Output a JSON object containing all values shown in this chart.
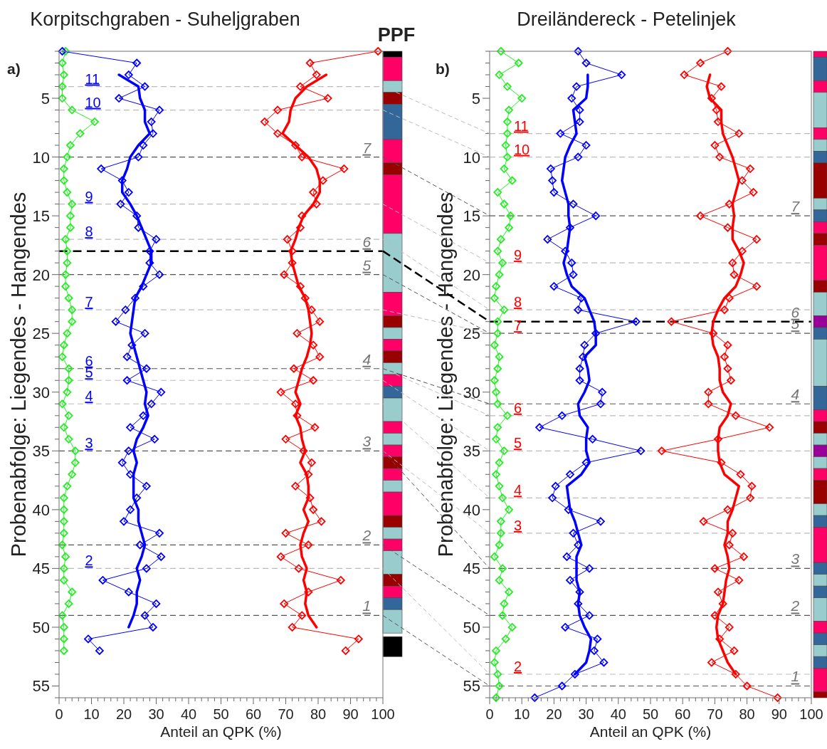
{
  "chart_data": [
    {
      "type": "line",
      "title": "Korpitschgraben - Suheljgraben",
      "xlabel": "Anteil an QPK (%)",
      "ylabel": "Probenabfolge: Liegendes - Hangendes",
      "xlim": [
        0,
        100
      ],
      "ylim": [
        56,
        1
      ],
      "marker": "diamond",
      "line_style": "solid",
      "grid": false,
      "xticks": [
        0,
        {
          "value": 2,
          "label": null
        },
        {
          "value": 4,
          "label": null
        },
        {
          "value": 6,
          "label": null
        },
        {
          "value": 8,
          "label": null
        },
        10,
        {
          "value": 12,
          "label": null
        },
        {
          "value": 14,
          "label": null
        },
        {
          "value": 16,
          "label": null
        },
        {
          "value": 18,
          "label": null
        },
        20,
        {
          "value": 22,
          "label": null
        },
        {
          "value": 24,
          "label": null
        },
        {
          "value": 26,
          "label": null
        },
        {
          "value": 28,
          "label": null
        },
        30,
        {
          "value": 32,
          "label": null
        },
        {
          "value": 34,
          "label": null
        },
        {
          "value": 36,
          "label": null
        },
        {
          "value": 38,
          "label": null
        },
        40,
        {
          "value": 42,
          "label": null
        },
        {
          "value": 44,
          "label": null
        },
        {
          "value": 46,
          "label": null
        },
        {
          "value": 48,
          "label": null
        },
        50,
        {
          "value": 52,
          "label": null
        },
        {
          "value": 54,
          "label": null
        },
        {
          "value": 56,
          "label": null
        },
        {
          "value": 58,
          "label": null
        },
        60,
        {
          "value": 62,
          "label": null
        },
        {
          "value": 64,
          "label": null
        },
        {
          "value": 66,
          "label": null
        },
        {
          "value": 68,
          "label": null
        },
        70,
        {
          "value": 72,
          "label": null
        },
        {
          "value": 74,
          "label": null
        },
        {
          "value": 76,
          "label": null
        },
        {
          "value": 78,
          "label": null
        },
        80,
        {
          "value": 82,
          "label": null
        },
        {
          "value": 84,
          "label": null
        },
        {
          "value": 86,
          "label": null
        },
        {
          "value": 88,
          "label": null
        },
        90,
        {
          "value": 92,
          "label": null
        },
        {
          "value": 94,
          "label": null
        },
        {
          "value": 96,
          "label": null
        },
        {
          "value": 98,
          "label": null
        },
        100
      ],
      "yticks": [
        {
          "value": 1,
          "label": null
        },
        {
          "value": 2,
          "label": null
        },
        {
          "value": 3,
          "label": null
        },
        {
          "value": 4,
          "label": null
        },
        5,
        {
          "value": 6,
          "label": null
        },
        {
          "value": 7,
          "label": null
        },
        {
          "value": 8,
          "label": null
        },
        {
          "value": 9,
          "label": null
        },
        10,
        {
          "value": 11,
          "label": null
        },
        {
          "value": 12,
          "label": null
        },
        {
          "value": 13,
          "label": null
        },
        {
          "value": 14,
          "label": null
        },
        15,
        {
          "value": 16,
          "label": null
        },
        {
          "value": 17,
          "label": null
        },
        {
          "value": 18,
          "label": null
        },
        {
          "value": 19,
          "label": null
        },
        20,
        {
          "value": 21,
          "label": null
        },
        {
          "value": 22,
          "label": null
        },
        {
          "value": 23,
          "label": null
        },
        {
          "value": 24,
          "label": null
        },
        25,
        {
          "value": 26,
          "label": null
        },
        {
          "value": 27,
          "label": null
        },
        {
          "value": 28,
          "label": null
        },
        {
          "value": 29,
          "label": null
        },
        30,
        {
          "value": 31,
          "label": null
        },
        {
          "value": 32,
          "label": null
        },
        {
          "value": 33,
          "label": null
        },
        {
          "value": 34,
          "label": null
        },
        35,
        {
          "value": 36,
          "label": null
        },
        {
          "value": 37,
          "label": null
        },
        {
          "value": 38,
          "label": null
        },
        {
          "value": 39,
          "label": null
        },
        40,
        {
          "value": 41,
          "label": null
        },
        {
          "value": 42,
          "label": null
        },
        {
          "value": 43,
          "label": null
        },
        {
          "value": 44,
          "label": null
        },
        45,
        {
          "value": 46,
          "label": null
        },
        {
          "value": 47,
          "label": null
        },
        {
          "value": 48,
          "label": null
        },
        {
          "value": 49,
          "label": null
        },
        50,
        {
          "value": 51,
          "label": null
        },
        {
          "value": 52,
          "label": null
        },
        {
          "value": 53,
          "label": null
        },
        {
          "value": 54,
          "label": null
        },
        55,
        {
          "value": 56,
          "label": null
        }
      ],
      "series": [
        {
          "color": "#22ee22",
          "x": [
            2,
            1,
            1.5,
            1,
            1,
            4,
            11,
            6.5,
            3.5,
            2.5,
            1.5,
            1.5,
            2.5,
            4,
            3.5,
            3.5,
            2,
            2.5,
            2.5,
            2,
            2,
            3,
            4,
            4,
            2.5,
            1.5,
            1,
            3,
            3,
            2.5,
            1,
            3,
            1.5,
            3,
            5,
            5,
            4,
            2.5,
            1.5,
            1.5,
            1.5,
            1.5,
            1,
            2,
            1.5,
            1.5,
            4,
            3,
            1,
            1.5,
            1.5,
            1.5
          ],
          "values": [
            1,
            2,
            3,
            4,
            5,
            6,
            7,
            8,
            9,
            10,
            11,
            12,
            13,
            14,
            15,
            16,
            17,
            18,
            19,
            20,
            21,
            22,
            23,
            24,
            25,
            26,
            27,
            28,
            29,
            30,
            31,
            32,
            33,
            34,
            35,
            36,
            37,
            38,
            39,
            40,
            41,
            42,
            43,
            44,
            45,
            46,
            47,
            48,
            49,
            50,
            51,
            52
          ]
        },
        {
          "color": "#0000ff",
          "x": [
            1,
            24,
            21.5,
            26.5,
            18.5,
            31,
            28.5,
            29,
            26,
            24.5,
            13,
            19.5,
            21.5,
            19,
            24,
            24.5,
            30,
            28,
            28,
            31,
            26,
            23.5,
            20.5,
            17.5,
            26.5,
            22.5,
            21,
            27,
            21,
            31.5,
            28.5,
            26,
            22,
            29.5,
            21.5,
            19.5,
            22,
            27,
            24,
            22,
            20,
            31,
            25,
            31.5,
            27,
            13.5,
            21.5,
            30,
            26.5,
            29,
            9,
            12.5
          ],
          "values": [
            1,
            2,
            3,
            4,
            5,
            6,
            7,
            8,
            9,
            10,
            11,
            12,
            13,
            14,
            15,
            16,
            17,
            18,
            19,
            20,
            21,
            22,
            23,
            24,
            25,
            26,
            27,
            28,
            29,
            30,
            31,
            32,
            33,
            34,
            35,
            36,
            37,
            38,
            39,
            40,
            41,
            42,
            43,
            44,
            45,
            46,
            47,
            48,
            49,
            50,
            51,
            52
          ]
        },
        {
          "color": "#ff0000",
          "x": [
            98.5,
            77.5,
            79.5,
            74.5,
            83,
            67.5,
            63.5,
            67.5,
            73,
            75,
            88,
            81.5,
            78.5,
            79.5,
            75,
            74.5,
            70.5,
            72,
            72,
            69.5,
            74.5,
            76,
            78,
            80.5,
            73.5,
            78.5,
            80.5,
            72.5,
            78.5,
            68.5,
            73,
            73.5,
            79,
            70,
            75.5,
            78,
            77,
            73,
            77.5,
            78.5,
            81,
            70,
            77,
            68.5,
            74,
            87,
            77,
            69.5,
            75,
            72,
            92.5,
            88.5
          ],
          "values": [
            1,
            2,
            3,
            4,
            5,
            6,
            7,
            8,
            9,
            10,
            11,
            12,
            13,
            14,
            15,
            16,
            17,
            18,
            19,
            20,
            21,
            22,
            23,
            24,
            25,
            26,
            27,
            28,
            29,
            30,
            31,
            32,
            33,
            34,
            35,
            36,
            37,
            38,
            39,
            40,
            41,
            42,
            43,
            44,
            45,
            46,
            47,
            48,
            49,
            50,
            51,
            52
          ]
        },
        {
          "color": "#0000ff",
          "marker": "none",
          "x": [
            18.5,
            24.5,
            25,
            26.5,
            26.5,
            28,
            24.5,
            22,
            21,
            19.5,
            19.5,
            22,
            24,
            25.5,
            27,
            28.5,
            28.5,
            27,
            25.5,
            23.5,
            23,
            22.5,
            22,
            23,
            24,
            25,
            26,
            27,
            26.5,
            27.5,
            26,
            24,
            23,
            24,
            23,
            23,
            23,
            24.5,
            24.5,
            25.5,
            26.5,
            25.5,
            24,
            25,
            24,
            24,
            23,
            21.5
          ],
          "values": [
            3,
            4,
            5,
            6,
            7,
            8,
            9,
            10,
            11,
            12,
            13,
            14,
            15,
            16,
            17,
            18,
            19,
            20,
            21,
            22,
            23,
            24,
            25,
            26,
            27,
            28,
            29,
            30,
            31,
            32,
            33,
            34,
            35,
            36,
            37,
            38,
            39,
            40,
            41,
            42,
            43,
            44,
            45,
            46,
            47,
            48,
            49,
            50
          ]
        },
        {
          "color": "#ff0000",
          "marker": "none",
          "x": [
            82.5,
            76.5,
            73,
            71.5,
            71,
            69,
            73,
            77,
            79.5,
            80.5,
            80.5,
            78.5,
            75.5,
            74,
            73,
            71.5,
            72,
            73,
            74,
            76,
            77,
            77.5,
            78,
            77.5,
            76.5,
            75,
            74,
            73,
            74.5,
            73,
            74.5,
            75,
            76,
            74.5,
            76.5,
            77,
            77,
            75.5,
            77,
            75.5,
            74.5,
            75,
            76.5,
            75.5,
            76.5,
            76,
            77,
            79.5
          ],
          "values": [
            3,
            4,
            5,
            6,
            7,
            8,
            9,
            10,
            11,
            12,
            13,
            14,
            15,
            16,
            17,
            18,
            19,
            20,
            21,
            22,
            23,
            24,
            25,
            26,
            27,
            28,
            29,
            30,
            31,
            32,
            33,
            34,
            35,
            36,
            37,
            38,
            39,
            40,
            41,
            42,
            43,
            44,
            45,
            46,
            47,
            48,
            49,
            50
          ]
        }
      ],
      "ref_lines": [
        {
          "axis": "y",
          "value": 10,
          "color": "#555555",
          "line_style": "dashed"
        },
        {
          "axis": "y",
          "value": 18,
          "color": "#000000",
          "line_style": "dashed"
        },
        {
          "axis": "y",
          "value": 20,
          "color": "#555555",
          "line_style": "dashed"
        },
        {
          "axis": "y",
          "value": 28,
          "color": "#555555",
          "line_style": "dashed"
        },
        {
          "axis": "y",
          "value": 35,
          "color": "#555555",
          "line_style": "dashed"
        },
        {
          "axis": "y",
          "value": 43,
          "color": "#555555",
          "line_style": "dashed"
        },
        {
          "axis": "y",
          "value": 49,
          "color": "#555555",
          "line_style": "dashed"
        },
        {
          "axis": "y",
          "value": 4,
          "color": "#bbbbbb",
          "line_style": "dashed"
        },
        {
          "axis": "y",
          "value": 6,
          "color": "#bbbbbb",
          "line_style": "dashed"
        },
        {
          "axis": "y",
          "value": 14,
          "color": "#bbbbbb",
          "line_style": "dashed"
        },
        {
          "axis": "y",
          "value": 17,
          "color": "#bbbbbb",
          "line_style": "dashed"
        },
        {
          "axis": "y",
          "value": 23,
          "color": "#bbbbbb",
          "line_style": "dashed"
        },
        {
          "axis": "y",
          "value": 29,
          "color": "#bbbbbb",
          "line_style": "dashed"
        },
        {
          "axis": "y",
          "value": 31,
          "color": "#bbbbbb",
          "line_style": "dashed"
        },
        {
          "axis": "y",
          "value": 45,
          "color": "#bbbbbb",
          "line_style": "dashed"
        }
      ],
      "annotations": [
        "a)",
        "PPF",
        {
          "text": "7",
          "x": 95,
          "y": 10
        },
        {
          "text": "6",
          "x": 95,
          "y": 18
        },
        {
          "text": "5",
          "x": 95,
          "y": 20
        },
        {
          "text": "4",
          "x": 95,
          "y": 28
        },
        {
          "text": "3",
          "x": 95,
          "y": 35
        },
        {
          "text": "2",
          "x": 95,
          "y": 43
        },
        {
          "text": "1",
          "x": 95,
          "y": 49
        },
        {
          "text": "11",
          "x": 8,
          "y": 4
        },
        {
          "text": "10",
          "x": 8,
          "y": 6
        },
        {
          "text": "9",
          "x": 8,
          "y": 14
        },
        {
          "text": "8",
          "x": 8,
          "y": 17
        },
        {
          "text": "7",
          "x": 8,
          "y": 23
        },
        {
          "text": "6",
          "x": 8,
          "y": 28
        },
        {
          "text": "5",
          "x": 8,
          "y": 29
        },
        {
          "text": "4",
          "x": 8,
          "y": 31
        },
        {
          "text": "3",
          "x": 8,
          "y": 35
        },
        {
          "text": "2",
          "x": 8,
          "y": 45
        }
      ]
    },
    {
      "type": "line",
      "title": "Dreiländereck - Petelinjek",
      "xlabel": "Anteil an QPK (%)",
      "ylabel": "Probenabfolge: Liegendes - Hangendes",
      "xlim": [
        0,
        100
      ],
      "ylim": [
        56,
        1
      ],
      "marker": "diamond",
      "line_style": "solid",
      "grid": false,
      "xticks": [
        0,
        {
          "value": 2,
          "label": null
        },
        {
          "value": 4,
          "label": null
        },
        {
          "value": 6,
          "label": null
        },
        {
          "value": 8,
          "label": null
        },
        10,
        {
          "value": 12,
          "label": null
        },
        {
          "value": 14,
          "label": null
        },
        {
          "value": 16,
          "label": null
        },
        {
          "value": 18,
          "label": null
        },
        20,
        {
          "value": 22,
          "label": null
        },
        {
          "value": 24,
          "label": null
        },
        {
          "value": 26,
          "label": null
        },
        {
          "value": 28,
          "label": null
        },
        30,
        {
          "value": 32,
          "label": null
        },
        {
          "value": 34,
          "label": null
        },
        {
          "value": 36,
          "label": null
        },
        {
          "value": 38,
          "label": null
        },
        40,
        {
          "value": 42,
          "label": null
        },
        {
          "value": 44,
          "label": null
        },
        {
          "value": 46,
          "label": null
        },
        {
          "value": 48,
          "label": null
        },
        50,
        {
          "value": 52,
          "label": null
        },
        {
          "value": 54,
          "label": null
        },
        {
          "value": 56,
          "label": null
        },
        {
          "value": 58,
          "label": null
        },
        60,
        {
          "value": 62,
          "label": null
        },
        {
          "value": 64,
          "label": null
        },
        {
          "value": 66,
          "label": null
        },
        {
          "value": 68,
          "label": null
        },
        70,
        {
          "value": 72,
          "label": null
        },
        {
          "value": 74,
          "label": null
        },
        {
          "value": 76,
          "label": null
        },
        {
          "value": 78,
          "label": null
        },
        80,
        {
          "value": 82,
          "label": null
        },
        {
          "value": 84,
          "label": null
        },
        {
          "value": 86,
          "label": null
        },
        {
          "value": 88,
          "label": null
        },
        90,
        {
          "value": 92,
          "label": null
        },
        {
          "value": 94,
          "label": null
        },
        {
          "value": 96,
          "label": null
        },
        {
          "value": 98,
          "label": null
        },
        100
      ],
      "yticks": [
        {
          "value": 1,
          "label": null
        },
        {
          "value": 2,
          "label": null
        },
        {
          "value": 3,
          "label": null
        },
        {
          "value": 4,
          "label": null
        },
        5,
        {
          "value": 6,
          "label": null
        },
        {
          "value": 7,
          "label": null
        },
        {
          "value": 8,
          "label": null
        },
        {
          "value": 9,
          "label": null
        },
        10,
        {
          "value": 11,
          "label": null
        },
        {
          "value": 12,
          "label": null
        },
        {
          "value": 13,
          "label": null
        },
        {
          "value": 14,
          "label": null
        },
        15,
        {
          "value": 16,
          "label": null
        },
        {
          "value": 17,
          "label": null
        },
        {
          "value": 18,
          "label": null
        },
        {
          "value": 19,
          "label": null
        },
        20,
        {
          "value": 21,
          "label": null
        },
        {
          "value": 22,
          "label": null
        },
        {
          "value": 23,
          "label": null
        },
        {
          "value": 24,
          "label": null
        },
        25,
        {
          "value": 26,
          "label": null
        },
        {
          "value": 27,
          "label": null
        },
        {
          "value": 28,
          "label": null
        },
        {
          "value": 29,
          "label": null
        },
        30,
        {
          "value": 31,
          "label": null
        },
        {
          "value": 32,
          "label": null
        },
        {
          "value": 33,
          "label": null
        },
        {
          "value": 34,
          "label": null
        },
        35,
        {
          "value": 36,
          "label": null
        },
        {
          "value": 37,
          "label": null
        },
        {
          "value": 38,
          "label": null
        },
        {
          "value": 39,
          "label": null
        },
        40,
        {
          "value": 41,
          "label": null
        },
        {
          "value": 42,
          "label": null
        },
        {
          "value": 43,
          "label": null
        },
        {
          "value": 44,
          "label": null
        },
        45,
        {
          "value": 46,
          "label": null
        },
        {
          "value": 47,
          "label": null
        },
        {
          "value": 48,
          "label": null
        },
        {
          "value": 49,
          "label": null
        },
        50,
        {
          "value": 51,
          "label": null
        },
        {
          "value": 52,
          "label": null
        },
        {
          "value": 53,
          "label": null
        },
        {
          "value": 54,
          "label": null
        },
        55,
        {
          "value": 56,
          "label": null
        }
      ],
      "series": [
        {
          "color": "#22ee22",
          "x": [
            3.5,
            9,
            3,
            5.5,
            10,
            6,
            5.5,
            5.5,
            5,
            5.5,
            4.5,
            7,
            2.5,
            4.5,
            6.5,
            6,
            3.5,
            2.5,
            4,
            3,
            2,
            1.5,
            4.5,
            2.5,
            2.5,
            1.5,
            3,
            2.5,
            1.5,
            2,
            2.5,
            5.5,
            2.5,
            2,
            4.5,
            3,
            2,
            3,
            4,
            6,
            3.5,
            3.5,
            3,
            1.5,
            4,
            3,
            6,
            4.5,
            4,
            7,
            5,
            2,
            1.5,
            2.5,
            3,
            2
          ],
          "values": [
            1,
            2,
            3,
            4,
            5,
            6,
            7,
            8,
            9,
            10,
            11,
            12,
            13,
            14,
            15,
            16,
            17,
            18,
            19,
            20,
            21,
            22,
            23,
            24,
            25,
            26,
            27,
            28,
            29,
            30,
            31,
            32,
            33,
            34,
            35,
            36,
            37,
            38,
            39,
            40,
            41,
            42,
            43,
            44,
            45,
            46,
            47,
            48,
            49,
            50,
            51,
            52,
            53,
            54,
            55,
            56
          ]
        },
        {
          "color": "#0000ff",
          "x": [
            27.5,
            30,
            41,
            27,
            25.5,
            28,
            28,
            22,
            30,
            27.5,
            19,
            19.5,
            20,
            26,
            33,
            25,
            18,
            23.5,
            25.5,
            26,
            20,
            28.5,
            27.5,
            45.5,
            33,
            29.5,
            29,
            28,
            28,
            35,
            34.5,
            22.5,
            15.5,
            32,
            47,
            30,
            25,
            20.5,
            19.5,
            24.5,
            34.5,
            26,
            27.5,
            24,
            31,
            25,
            28,
            27.5,
            31,
            23.5,
            33.5,
            32.5,
            35.5,
            26.5,
            22.5,
            14
          ],
          "values": [
            1,
            2,
            3,
            4,
            5,
            6,
            7,
            8,
            9,
            10,
            11,
            12,
            13,
            14,
            15,
            16,
            17,
            18,
            19,
            20,
            21,
            22,
            23,
            24,
            25,
            26,
            27,
            28,
            29,
            30,
            31,
            32,
            33,
            34,
            35,
            36,
            37,
            38,
            39,
            40,
            41,
            42,
            43,
            44,
            45,
            46,
            47,
            48,
            49,
            50,
            51,
            52,
            53,
            54,
            55,
            56
          ]
        },
        {
          "color": "#ff0000",
          "x": [
            74,
            65.5,
            60.5,
            72,
            69,
            70.5,
            71,
            77.5,
            70,
            71.5,
            81,
            78.5,
            82,
            74.5,
            65.5,
            74,
            83,
            78.5,
            75.5,
            76,
            83,
            74.5,
            73,
            56.5,
            69.5,
            74,
            73,
            74,
            75,
            68,
            68,
            76.5,
            87,
            71,
            53.5,
            72,
            78,
            81.5,
            81,
            74,
            66.5,
            75.5,
            74.5,
            79,
            70,
            77.5,
            71,
            72.5,
            70,
            74.5,
            71.5,
            76,
            69,
            76.5,
            80,
            89.5
          ],
          "values": [
            1,
            2,
            3,
            4,
            5,
            6,
            7,
            8,
            9,
            10,
            11,
            12,
            13,
            14,
            15,
            16,
            17,
            18,
            19,
            20,
            21,
            22,
            23,
            24,
            25,
            26,
            27,
            28,
            29,
            30,
            31,
            32,
            33,
            34,
            35,
            36,
            37,
            38,
            39,
            40,
            41,
            42,
            43,
            44,
            45,
            46,
            47,
            48,
            49,
            50,
            51,
            52,
            53,
            54,
            55,
            56
          ]
        },
        {
          "color": "#0000ff",
          "marker": "none",
          "x": [
            30.5,
            30.5,
            30,
            26,
            26.5,
            27,
            25,
            23.5,
            23,
            22.5,
            23.5,
            24.5,
            24.5,
            25,
            24.5,
            24,
            23,
            24,
            25.5,
            29.5,
            31,
            32.5,
            33,
            33,
            29.5,
            30.5,
            31,
            29.5,
            27.5,
            28,
            30.5,
            30,
            30,
            31,
            28.5,
            24,
            24.5,
            25,
            26.5,
            27.5,
            28.5,
            27,
            27,
            27,
            28,
            27.5,
            28,
            29.5,
            31.5,
            31,
            30,
            26.5
          ],
          "values": [
            3,
            4,
            5,
            6,
            7,
            8,
            9,
            10,
            11,
            12,
            13,
            14,
            15,
            16,
            17,
            18,
            19,
            20,
            21,
            22,
            23,
            24,
            25,
            26,
            27,
            28,
            29,
            30,
            31,
            32,
            33,
            34,
            35,
            36,
            37,
            38,
            39,
            40,
            41,
            42,
            43,
            44,
            45,
            46,
            47,
            48,
            49,
            50,
            51,
            52,
            53,
            54
          ]
        },
        {
          "color": "#ff0000",
          "marker": "none",
          "x": [
            68.5,
            67.5,
            68.5,
            72,
            72,
            72.5,
            74,
            75.5,
            76.5,
            77.5,
            76.5,
            75.5,
            76,
            75.5,
            75.5,
            77.5,
            79,
            78,
            76.5,
            73,
            71,
            69.5,
            69,
            69.5,
            71,
            71.5,
            71.5,
            72.5,
            75,
            74,
            71.5,
            71,
            71,
            71.5,
            73,
            77.5,
            76.5,
            75.5,
            74,
            74,
            73,
            74,
            74.5,
            73.5,
            73,
            72.5,
            71,
            70.5,
            71,
            72.5,
            74,
            76.5
          ],
          "values": [
            3,
            4,
            5,
            6,
            7,
            8,
            9,
            10,
            11,
            12,
            13,
            14,
            15,
            16,
            17,
            18,
            19,
            20,
            21,
            22,
            23,
            24,
            25,
            26,
            27,
            28,
            29,
            30,
            31,
            32,
            33,
            34,
            35,
            36,
            37,
            38,
            39,
            40,
            41,
            42,
            43,
            44,
            45,
            46,
            47,
            48,
            49,
            50,
            51,
            52,
            53,
            54
          ]
        }
      ],
      "ref_lines": [
        {
          "axis": "y",
          "value": 15,
          "color": "#555555",
          "line_style": "dashed"
        },
        {
          "axis": "y",
          "value": 24,
          "color": "#000000",
          "line_style": "dashed"
        },
        {
          "axis": "y",
          "value": 25,
          "color": "#555555",
          "line_style": "dashed"
        },
        {
          "axis": "y",
          "value": 31,
          "color": "#555555",
          "line_style": "dashed"
        },
        {
          "axis": "y",
          "value": 45,
          "color": "#555555",
          "line_style": "dashed"
        },
        {
          "axis": "y",
          "value": 49,
          "color": "#555555",
          "line_style": "dashed"
        },
        {
          "axis": "y",
          "value": 55,
          "color": "#555555",
          "line_style": "dashed"
        },
        {
          "axis": "y",
          "value": 8,
          "color": "#bbbbbb",
          "line_style": "dashed"
        },
        {
          "axis": "y",
          "value": 10,
          "color": "#bbbbbb",
          "line_style": "dashed"
        },
        {
          "axis": "y",
          "value": 19,
          "color": "#bbbbbb",
          "line_style": "dashed"
        },
        {
          "axis": "y",
          "value": 23,
          "color": "#bbbbbb",
          "line_style": "dashed"
        },
        {
          "axis": "y",
          "value": 32,
          "color": "#bbbbbb",
          "line_style": "dashed"
        },
        {
          "axis": "y",
          "value": 35,
          "color": "#bbbbbb",
          "line_style": "dashed"
        },
        {
          "axis": "y",
          "value": 39,
          "color": "#bbbbbb",
          "line_style": "dashed"
        },
        {
          "axis": "y",
          "value": 42,
          "color": "#bbbbbb",
          "line_style": "dashed"
        },
        {
          "axis": "y",
          "value": 54,
          "color": "#bbbbbb",
          "line_style": "dashed"
        }
      ],
      "annotations": [
        "b)",
        {
          "text": "7",
          "x": 95,
          "y": 15
        },
        {
          "text": "6",
          "x": 95,
          "y": 24
        },
        {
          "text": "5",
          "x": 95,
          "y": 25
        },
        {
          "text": "4",
          "x": 95,
          "y": 31
        },
        {
          "text": "3",
          "x": 95,
          "y": 45
        },
        {
          "text": "2",
          "x": 95,
          "y": 49
        },
        {
          "text": "1",
          "x": 95,
          "y": 55
        },
        {
          "text": "11",
          "x": 7.5,
          "y": 8
        },
        {
          "text": "10",
          "x": 7.5,
          "y": 10
        },
        {
          "text": "9",
          "x": 7.5,
          "y": 19
        },
        {
          "text": "8",
          "x": 7.5,
          "y": 23
        },
        {
          "text": "7",
          "x": 7.5,
          "y": 25
        },
        {
          "text": "6",
          "x": 7.5,
          "y": 32
        },
        {
          "text": "5",
          "x": 7.5,
          "y": 35
        },
        {
          "text": "4",
          "x": 7.5,
          "y": 39
        },
        {
          "text": "3",
          "x": 7.5,
          "y": 42
        },
        {
          "text": "2",
          "x": 7.5,
          "y": 54
        }
      ]
    }
  ]
}
